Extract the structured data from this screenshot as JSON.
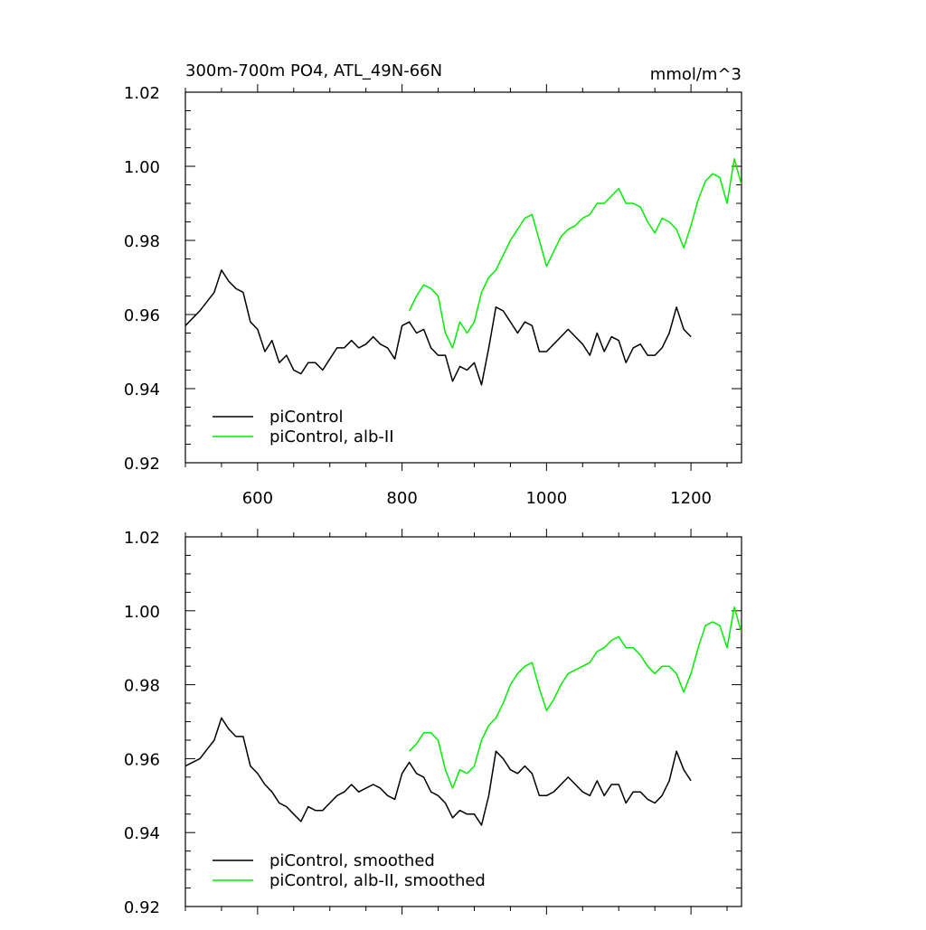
{
  "chart_data": [
    {
      "type": "line",
      "title": "300m-700m PO4, ATL_49N-66N",
      "units": "mmol/m^3",
      "xlim": [
        500,
        1270
      ],
      "ylim": [
        0.92,
        1.02
      ],
      "x_ticks": [
        600,
        800,
        1000,
        1200
      ],
      "x_tick_labels": [
        "600",
        "800",
        "1000",
        "1200"
      ],
      "y_ticks": [
        0.92,
        0.94,
        0.96,
        0.98,
        1.0,
        1.02
      ],
      "y_tick_labels": [
        "0.92",
        "0.94",
        "0.96",
        "0.98",
        "1.00",
        "1.02"
      ],
      "legend_position": "bottom-left",
      "series": [
        {
          "name": "piControl",
          "color": "#000000",
          "x": [
            500,
            520,
            540,
            550,
            560,
            570,
            580,
            590,
            600,
            610,
            620,
            630,
            640,
            650,
            660,
            670,
            680,
            690,
            700,
            710,
            720,
            730,
            740,
            750,
            760,
            770,
            780,
            790,
            800,
            810,
            820,
            830,
            840,
            850,
            860,
            870,
            880,
            890,
            900,
            910,
            920,
            930,
            940,
            950,
            960,
            970,
            980,
            990,
            1000,
            1010,
            1020,
            1030,
            1040,
            1050,
            1060,
            1070,
            1080,
            1090,
            1100,
            1110,
            1120,
            1130,
            1140,
            1150,
            1160,
            1170,
            1180,
            1190,
            1200
          ],
          "y": [
            0.957,
            0.961,
            0.966,
            0.972,
            0.969,
            0.967,
            0.966,
            0.958,
            0.956,
            0.95,
            0.953,
            0.947,
            0.949,
            0.945,
            0.944,
            0.947,
            0.947,
            0.945,
            0.948,
            0.951,
            0.951,
            0.953,
            0.951,
            0.952,
            0.954,
            0.952,
            0.951,
            0.948,
            0.957,
            0.958,
            0.955,
            0.956,
            0.951,
            0.949,
            0.949,
            0.942,
            0.946,
            0.945,
            0.947,
            0.941,
            0.951,
            0.962,
            0.961,
            0.958,
            0.955,
            0.958,
            0.957,
            0.95,
            0.95,
            0.952,
            0.954,
            0.956,
            0.954,
            0.952,
            0.949,
            0.955,
            0.95,
            0.954,
            0.953,
            0.947,
            0.951,
            0.952,
            0.949,
            0.949,
            0.951,
            0.955,
            0.962,
            0.956,
            0.954
          ]
        },
        {
          "name": "piControl, alb-II",
          "color": "#00ee00",
          "x": [
            810,
            820,
            830,
            840,
            850,
            860,
            870,
            880,
            890,
            900,
            910,
            920,
            930,
            940,
            950,
            960,
            970,
            980,
            990,
            1000,
            1010,
            1020,
            1030,
            1040,
            1050,
            1060,
            1070,
            1080,
            1090,
            1100,
            1110,
            1120,
            1130,
            1140,
            1150,
            1160,
            1170,
            1180,
            1190,
            1200,
            1210,
            1220,
            1230,
            1240,
            1250,
            1260,
            1270
          ],
          "y": [
            0.961,
            0.965,
            0.968,
            0.967,
            0.965,
            0.955,
            0.951,
            0.958,
            0.955,
            0.958,
            0.966,
            0.97,
            0.972,
            0.976,
            0.98,
            0.983,
            0.986,
            0.987,
            0.98,
            0.973,
            0.977,
            0.981,
            0.983,
            0.984,
            0.986,
            0.987,
            0.99,
            0.99,
            0.992,
            0.994,
            0.99,
            0.99,
            0.989,
            0.985,
            0.982,
            0.986,
            0.985,
            0.983,
            0.978,
            0.984,
            0.991,
            0.996,
            0.998,
            0.997,
            0.99,
            1.002,
            0.995
          ]
        }
      ]
    },
    {
      "type": "line",
      "title": "",
      "xlim": [
        500,
        1270
      ],
      "ylim": [
        0.92,
        1.02
      ],
      "x_ticks": [
        600,
        800,
        1000,
        1200
      ],
      "y_ticks": [
        0.92,
        0.94,
        0.96,
        0.98,
        1.0,
        1.02
      ],
      "y_tick_labels": [
        "0.92",
        "0.94",
        "0.96",
        "0.98",
        "1.00",
        "1.02"
      ],
      "legend_position": "bottom-left",
      "series": [
        {
          "name": "piControl, smoothed",
          "color": "#000000",
          "x": [
            500,
            520,
            540,
            550,
            560,
            570,
            580,
            590,
            600,
            610,
            620,
            630,
            640,
            650,
            660,
            670,
            680,
            690,
            700,
            710,
            720,
            730,
            740,
            750,
            760,
            770,
            780,
            790,
            800,
            810,
            820,
            830,
            840,
            850,
            860,
            870,
            880,
            890,
            900,
            910,
            920,
            930,
            940,
            950,
            960,
            970,
            980,
            990,
            1000,
            1010,
            1020,
            1030,
            1040,
            1050,
            1060,
            1070,
            1080,
            1090,
            1100,
            1110,
            1120,
            1130,
            1140,
            1150,
            1160,
            1170,
            1180,
            1190,
            1200
          ],
          "y": [
            0.958,
            0.96,
            0.965,
            0.971,
            0.968,
            0.966,
            0.966,
            0.958,
            0.956,
            0.953,
            0.951,
            0.948,
            0.947,
            0.945,
            0.943,
            0.947,
            0.946,
            0.946,
            0.948,
            0.95,
            0.951,
            0.953,
            0.951,
            0.952,
            0.953,
            0.952,
            0.95,
            0.949,
            0.956,
            0.959,
            0.956,
            0.955,
            0.951,
            0.95,
            0.948,
            0.944,
            0.946,
            0.945,
            0.945,
            0.942,
            0.95,
            0.962,
            0.96,
            0.957,
            0.956,
            0.958,
            0.956,
            0.95,
            0.95,
            0.951,
            0.953,
            0.955,
            0.953,
            0.951,
            0.95,
            0.954,
            0.95,
            0.953,
            0.953,
            0.948,
            0.951,
            0.951,
            0.949,
            0.948,
            0.95,
            0.954,
            0.962,
            0.957,
            0.954
          ]
        },
        {
          "name": "piControl, alb-II, smoothed",
          "color": "#00ee00",
          "x": [
            810,
            820,
            830,
            840,
            850,
            860,
            870,
            880,
            890,
            900,
            910,
            920,
            930,
            940,
            950,
            960,
            970,
            980,
            990,
            1000,
            1010,
            1020,
            1030,
            1040,
            1050,
            1060,
            1070,
            1080,
            1090,
            1100,
            1110,
            1120,
            1130,
            1140,
            1150,
            1160,
            1170,
            1180,
            1190,
            1200,
            1210,
            1220,
            1230,
            1240,
            1250,
            1260,
            1270
          ],
          "y": [
            0.962,
            0.964,
            0.967,
            0.967,
            0.965,
            0.957,
            0.952,
            0.957,
            0.956,
            0.958,
            0.965,
            0.969,
            0.971,
            0.975,
            0.98,
            0.983,
            0.985,
            0.986,
            0.979,
            0.973,
            0.976,
            0.98,
            0.983,
            0.984,
            0.985,
            0.986,
            0.989,
            0.99,
            0.992,
            0.993,
            0.99,
            0.99,
            0.988,
            0.985,
            0.983,
            0.985,
            0.985,
            0.983,
            0.978,
            0.983,
            0.99,
            0.996,
            0.997,
            0.996,
            0.99,
            1.001,
            0.994
          ]
        }
      ]
    }
  ]
}
